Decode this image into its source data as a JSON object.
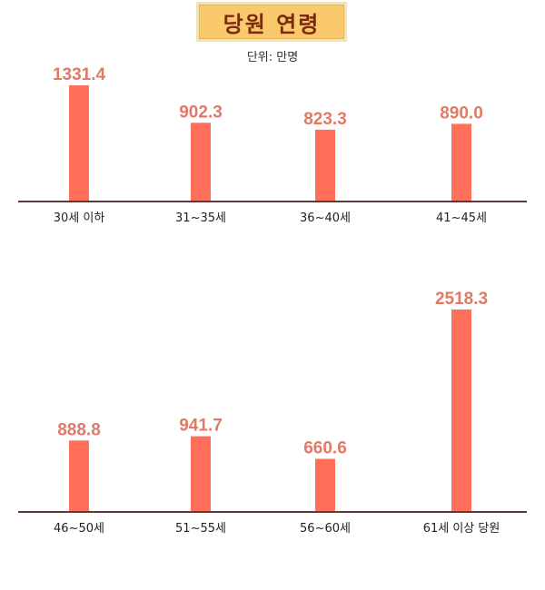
{
  "chart_data": {
    "type": "bar",
    "title": "당원 연령",
    "subtitle": "단위: 만명",
    "bar_color": "#ff6f5a",
    "label_color": "#e07a66",
    "axis_color": "#5a3a3a",
    "grid": false,
    "legend": "none",
    "panels": [
      {
        "categories": [
          "30세 이하",
          "31~35세",
          "36~40세",
          "41~45세"
        ],
        "values": [
          1331.4,
          902.3,
          823.3,
          890.0
        ],
        "value_labels": [
          "1331.4",
          "902.3",
          "823.3",
          "890.0"
        ],
        "ylim": [
          0,
          1331.4
        ]
      },
      {
        "categories": [
          "46~50세",
          "51~55세",
          "56~60세",
          "61세 이상 당원"
        ],
        "values": [
          888.8,
          941.7,
          660.6,
          2518.3
        ],
        "value_labels": [
          "888.8",
          "941.7",
          "660.6",
          "2518.3"
        ],
        "ylim": [
          0,
          2518.3
        ]
      }
    ]
  }
}
